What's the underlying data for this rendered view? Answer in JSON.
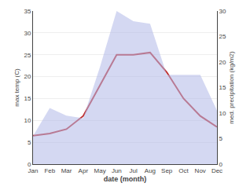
{
  "chart_data": {
    "type": "line",
    "categories": [
      "Jan",
      "Feb",
      "Mar",
      "Apr",
      "May",
      "Jun",
      "Jul",
      "Aug",
      "Sep",
      "Oct",
      "Nov",
      "Dec"
    ],
    "series": [
      {
        "type": "area",
        "axis": "y2",
        "color": "#b0b8e8",
        "values": [
          5.5,
          11.0,
          9.5,
          9.0,
          19.0,
          30.0,
          28.0,
          27.5,
          17.5,
          17.5,
          17.5,
          10.5
        ]
      },
      {
        "type": "line",
        "color": "#c03030",
        "values": [
          6.5,
          7.0,
          8.0,
          11.0,
          18.0,
          25.0,
          25.0,
          25.5,
          21.0,
          15.0,
          11.0,
          8.5
        ]
      }
    ],
    "xlabel": "date (month)",
    "ylabel": "max temp (C)",
    "y2label": "med. precipitation (kg/m2)",
    "ylim": [
      0,
      35
    ],
    "yticks": [
      0,
      5,
      10,
      15,
      20,
      25,
      30,
      35
    ],
    "y2lim": [
      0,
      30
    ],
    "y2ticks": [
      0,
      5,
      10,
      15,
      20,
      25,
      30
    ],
    "grid": true
  }
}
